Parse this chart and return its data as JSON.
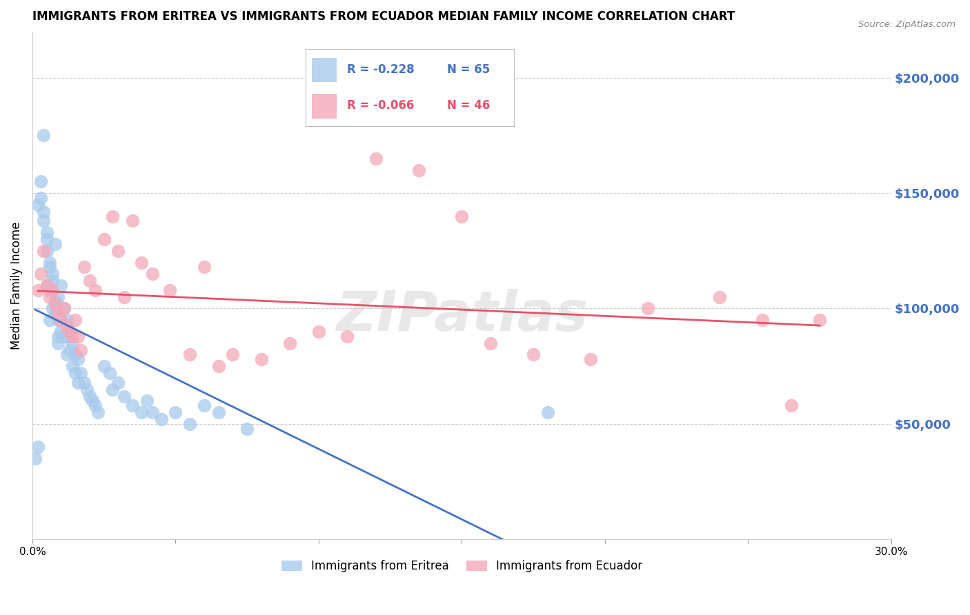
{
  "title": "IMMIGRANTS FROM ERITREA VS IMMIGRANTS FROM ECUADOR MEDIAN FAMILY INCOME CORRELATION CHART",
  "source": "Source: ZipAtlas.com",
  "ylabel": "Median Family Income",
  "xlim": [
    0.0,
    0.3
  ],
  "ylim": [
    0,
    220000
  ],
  "xticks": [
    0.0,
    0.05,
    0.1,
    0.15,
    0.2,
    0.25,
    0.3
  ],
  "xticklabels": [
    "0.0%",
    "",
    "",
    "",
    "",
    "",
    "30.0%"
  ],
  "yticks_right": [
    50000,
    100000,
    150000,
    200000
  ],
  "ytick_labels_right": [
    "$50,000",
    "$100,000",
    "$150,000",
    "$200,000"
  ],
  "legend_eritrea": "Immigrants from Eritrea",
  "legend_ecuador": "Immigrants from Ecuador",
  "legend_r_eritrea": "R = -0.228",
  "legend_n_eritrea": "N = 65",
  "legend_r_ecuador": "R = -0.066",
  "legend_n_ecuador": "N = 46",
  "color_eritrea": "#A8CAEC",
  "color_ecuador": "#F4A8B8",
  "color_trendline_eritrea": "#4472C4",
  "color_trendline_ecuador": "#E8506A",
  "color_axis_labels": "#4472C4",
  "watermark": "ZIPatlas",
  "eritrea_x": [
    0.001,
    0.002,
    0.002,
    0.003,
    0.003,
    0.004,
    0.004,
    0.004,
    0.005,
    0.005,
    0.005,
    0.005,
    0.006,
    0.006,
    0.006,
    0.006,
    0.007,
    0.007,
    0.007,
    0.008,
    0.008,
    0.008,
    0.009,
    0.009,
    0.009,
    0.009,
    0.01,
    0.01,
    0.01,
    0.011,
    0.011,
    0.012,
    0.012,
    0.012,
    0.013,
    0.013,
    0.014,
    0.014,
    0.015,
    0.015,
    0.016,
    0.016,
    0.017,
    0.018,
    0.019,
    0.02,
    0.021,
    0.022,
    0.023,
    0.025,
    0.027,
    0.028,
    0.03,
    0.032,
    0.035,
    0.038,
    0.04,
    0.042,
    0.045,
    0.05,
    0.055,
    0.06,
    0.065,
    0.075,
    0.18
  ],
  "eritrea_y": [
    35000,
    40000,
    145000,
    148000,
    155000,
    138000,
    142000,
    175000,
    130000,
    133000,
    125000,
    110000,
    120000,
    118000,
    108000,
    95000,
    115000,
    112000,
    100000,
    128000,
    103000,
    98000,
    105000,
    95000,
    88000,
    85000,
    110000,
    95000,
    90000,
    100000,
    88000,
    95000,
    88000,
    80000,
    90000,
    82000,
    85000,
    75000,
    80000,
    72000,
    78000,
    68000,
    72000,
    68000,
    65000,
    62000,
    60000,
    58000,
    55000,
    75000,
    72000,
    65000,
    68000,
    62000,
    58000,
    55000,
    60000,
    55000,
    52000,
    55000,
    50000,
    58000,
    55000,
    48000,
    55000
  ],
  "ecuador_x": [
    0.002,
    0.003,
    0.004,
    0.005,
    0.006,
    0.007,
    0.008,
    0.009,
    0.01,
    0.011,
    0.012,
    0.013,
    0.014,
    0.015,
    0.016,
    0.017,
    0.018,
    0.02,
    0.022,
    0.025,
    0.028,
    0.03,
    0.032,
    0.035,
    0.038,
    0.042,
    0.048,
    0.055,
    0.06,
    0.065,
    0.07,
    0.08,
    0.09,
    0.1,
    0.11,
    0.12,
    0.135,
    0.15,
    0.16,
    0.175,
    0.195,
    0.215,
    0.24,
    0.255,
    0.265,
    0.275
  ],
  "ecuador_y": [
    108000,
    115000,
    125000,
    110000,
    105000,
    108000,
    102000,
    98000,
    95000,
    100000,
    92000,
    90000,
    88000,
    95000,
    88000,
    82000,
    118000,
    112000,
    108000,
    130000,
    140000,
    125000,
    105000,
    138000,
    120000,
    115000,
    108000,
    80000,
    118000,
    75000,
    80000,
    78000,
    85000,
    90000,
    88000,
    165000,
    160000,
    140000,
    85000,
    80000,
    78000,
    100000,
    105000,
    95000,
    58000,
    95000
  ],
  "background_color": "#FFFFFF",
  "grid_color": "#CCCCCC"
}
